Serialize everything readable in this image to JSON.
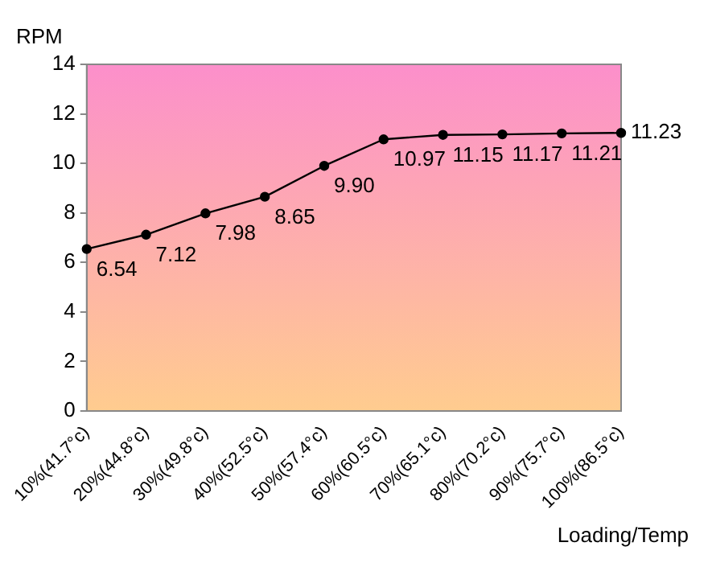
{
  "chart_data": {
    "type": "line",
    "ylabel": "RPM",
    "xlabel": "Loading/Temp",
    "categories": [
      "10%(41.7°c)",
      "20%(44.8°c)",
      "30%(49.8°c)",
      "40%(52.5°c)",
      "50%(57.4°c)",
      "60%(60.5°c)",
      "70%(65.1°c)",
      "80%(70.2°c)",
      "90%(75.7°c)",
      "100%(86.5°c)"
    ],
    "series": [
      {
        "color": "#000000",
        "values": [
          6.54,
          7.12,
          7.98,
          8.65,
          9.9,
          10.97,
          11.15,
          11.17,
          11.21,
          11.23
        ],
        "value_labels": [
          "6.54",
          "7.12",
          "7.98",
          "8.65",
          "9.90",
          "10.97",
          "11.15",
          "11.17",
          "11.21",
          "11.23"
        ]
      }
    ],
    "ylim": [
      0,
      14
    ],
    "yticks": [
      0,
      2,
      4,
      6,
      8,
      10,
      12,
      14
    ],
    "grid": false,
    "legend": false,
    "marker": "circle",
    "line_style": "solid"
  }
}
